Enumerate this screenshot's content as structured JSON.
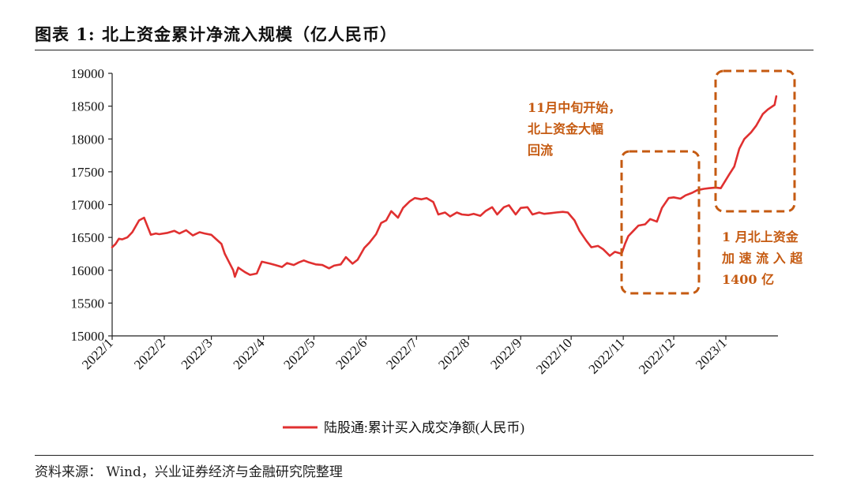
{
  "header": {
    "title": "图表 1:  北上资金累计净流入规模（亿人民币）"
  },
  "footer": {
    "source": "资料来源：  Wind，兴业证券经济与金融研究院整理"
  },
  "colors": {
    "line": "#e03030",
    "annotation": "#c55a11"
  },
  "chart_data": {
    "type": "line",
    "title": "",
    "xlabel": "",
    "ylabel": "",
    "ylim": [
      15000,
      19000
    ],
    "yticks": [
      15000,
      15500,
      16000,
      16500,
      17000,
      17500,
      18000,
      18500,
      19000
    ],
    "x_ticks": [
      "2022/1",
      "2022/2",
      "2022/3",
      "2022/4",
      "2022/5",
      "2022/6",
      "2022/7",
      "2022/8",
      "2022/9",
      "2022/10",
      "2022/11",
      "2022/12",
      "2023/1"
    ],
    "legend": {
      "position": "bottom",
      "label": "陆股通:累计买入成交净额(人民币)"
    },
    "series": [
      {
        "name": "陆股通:累计买入成交净额(人民币)",
        "x": [
          "2022-01-01",
          "2022-01-03",
          "2022-01-05",
          "2022-01-07",
          "2022-01-10",
          "2022-01-13",
          "2022-01-17",
          "2022-01-20",
          "2022-01-24",
          "2022-01-27",
          "2022-01-29",
          "2022-02-03",
          "2022-02-07",
          "2022-02-10",
          "2022-02-14",
          "2022-02-18",
          "2022-02-22",
          "2022-02-25",
          "2022-03-01",
          "2022-03-04",
          "2022-03-07",
          "2022-03-09",
          "2022-03-11",
          "2022-03-14",
          "2022-03-15",
          "2022-03-17",
          "2022-03-21",
          "2022-03-24",
          "2022-03-28",
          "2022-03-31",
          "2022-04-05",
          "2022-04-08",
          "2022-04-12",
          "2022-04-15",
          "2022-04-19",
          "2022-04-22",
          "2022-04-25",
          "2022-04-28",
          "2022-05-02",
          "2022-05-06",
          "2022-05-10",
          "2022-05-13",
          "2022-05-17",
          "2022-05-20",
          "2022-05-24",
          "2022-05-27",
          "2022-05-31",
          "2022-06-03",
          "2022-06-07",
          "2022-06-10",
          "2022-06-13",
          "2022-06-16",
          "2022-06-20",
          "2022-06-23",
          "2022-06-27",
          "2022-06-30",
          "2022-07-04",
          "2022-07-07",
          "2022-07-11",
          "2022-07-14",
          "2022-07-18",
          "2022-07-21",
          "2022-07-25",
          "2022-07-28",
          "2022-08-01",
          "2022-08-04",
          "2022-08-08",
          "2022-08-11",
          "2022-08-15",
          "2022-08-18",
          "2022-08-22",
          "2022-08-25",
          "2022-08-29",
          "2022-09-01",
          "2022-09-05",
          "2022-09-08",
          "2022-09-12",
          "2022-09-15",
          "2022-09-19",
          "2022-09-22",
          "2022-09-26",
          "2022-09-29",
          "2022-10-03",
          "2022-10-06",
          "2022-10-10",
          "2022-10-13",
          "2022-10-17",
          "2022-10-20",
          "2022-10-24",
          "2022-10-27",
          "2022-10-31",
          "2022-11-02",
          "2022-11-04",
          "2022-11-07",
          "2022-11-10",
          "2022-11-14",
          "2022-11-17",
          "2022-11-21",
          "2022-11-24",
          "2022-11-28",
          "2022-12-01",
          "2022-12-05",
          "2022-12-08",
          "2022-12-12",
          "2022-12-15",
          "2022-12-19",
          "2022-12-22",
          "2022-12-26",
          "2022-12-29",
          "2023-01-03",
          "2023-01-06",
          "2023-01-09",
          "2023-01-12",
          "2023-01-16",
          "2023-01-19",
          "2023-01-23",
          "2023-01-26",
          "2023-01-30",
          "2023-01-31"
        ],
        "values": [
          16350,
          16400,
          16480,
          16470,
          16500,
          16580,
          16760,
          16800,
          16540,
          16560,
          16550,
          16570,
          16600,
          16560,
          16610,
          16530,
          16580,
          16560,
          16540,
          16470,
          16400,
          16250,
          16150,
          16000,
          15900,
          16040,
          15970,
          15930,
          15950,
          16130,
          16100,
          16080,
          16050,
          16110,
          16080,
          16120,
          16150,
          16120,
          16090,
          16080,
          16030,
          16070,
          16090,
          16200,
          16100,
          16160,
          16340,
          16420,
          16550,
          16720,
          16760,
          16900,
          16800,
          16950,
          17050,
          17100,
          17080,
          17100,
          17040,
          16850,
          16880,
          16820,
          16880,
          16850,
          16840,
          16860,
          16830,
          16900,
          16960,
          16850,
          16960,
          16990,
          16850,
          16950,
          16960,
          16850,
          16880,
          16860,
          16870,
          16880,
          16890,
          16880,
          16760,
          16600,
          16450,
          16350,
          16370,
          16320,
          16220,
          16280,
          16250,
          16400,
          16520,
          16600,
          16680,
          16700,
          16780,
          16740,
          16950,
          17100,
          17110,
          17090,
          17140,
          17180,
          17220,
          17240,
          17250,
          17260,
          17250,
          17460,
          17580,
          17850,
          18000,
          18100,
          18200,
          18380,
          18450,
          18520,
          18650
        ]
      }
    ],
    "annotations": [
      {
        "lines": [
          "11月中旬开始，",
          "北上资金大幅",
          "回流"
        ]
      },
      {
        "lines": [
          "1 月北上资金",
          "加 速 流 入 超",
          "1400 亿"
        ]
      }
    ]
  }
}
